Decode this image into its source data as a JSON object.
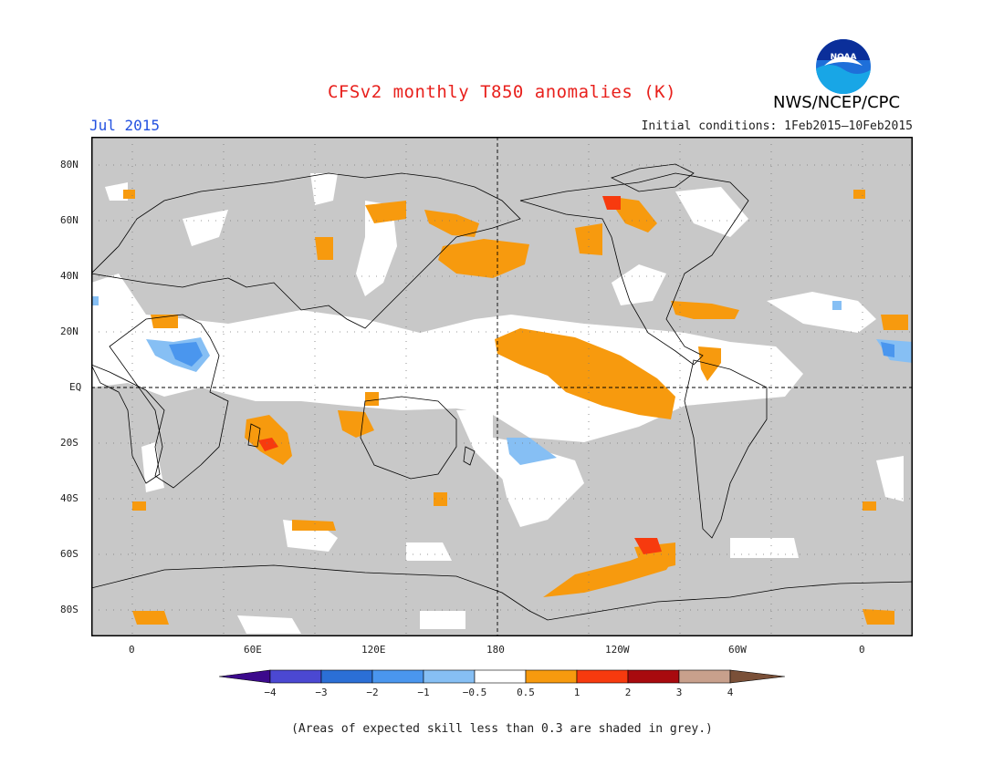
{
  "title": "CFSv2 monthly T850 anomalies (K)",
  "forecast_month": "Jul 2015",
  "initial_conditions": "Initial conditions: 1Feb2015–10Feb2015",
  "agency": "NWS/NCEP/CPC",
  "logo_text": "NOAA",
  "footnote": "(Areas of expected skill less than 0.3 are shaded in grey.)",
  "colors": {
    "skill_grey": "#c8c8c8",
    "no_anomaly": "#ffffff",
    "title_red": "#e8201c",
    "month_blue": "#2452e0"
  },
  "map": {
    "projection": "cylindrical equidistant, 0-360 longitude centred on 180",
    "lat_labels": [
      "80N",
      "60N",
      "40N",
      "20N",
      "EQ",
      "20S",
      "40S",
      "60S",
      "80S"
    ],
    "lon_labels": [
      "0",
      "60E",
      "120E",
      "180",
      "120W",
      "60W",
      "0"
    ]
  },
  "colorbar": {
    "labels": [
      "−4",
      "−3",
      "−2",
      "−1",
      "−0.5",
      "0.5",
      "1",
      "2",
      "3",
      "4"
    ],
    "colors": [
      "#3c0a8c",
      "#4b48d2",
      "#2b6fd6",
      "#4a96ee",
      "#86bff4",
      "#ffffff",
      "#f79a0e",
      "#f73a0e",
      "#a80a0e",
      "#c8a08c",
      "#7a5038"
    ]
  }
}
